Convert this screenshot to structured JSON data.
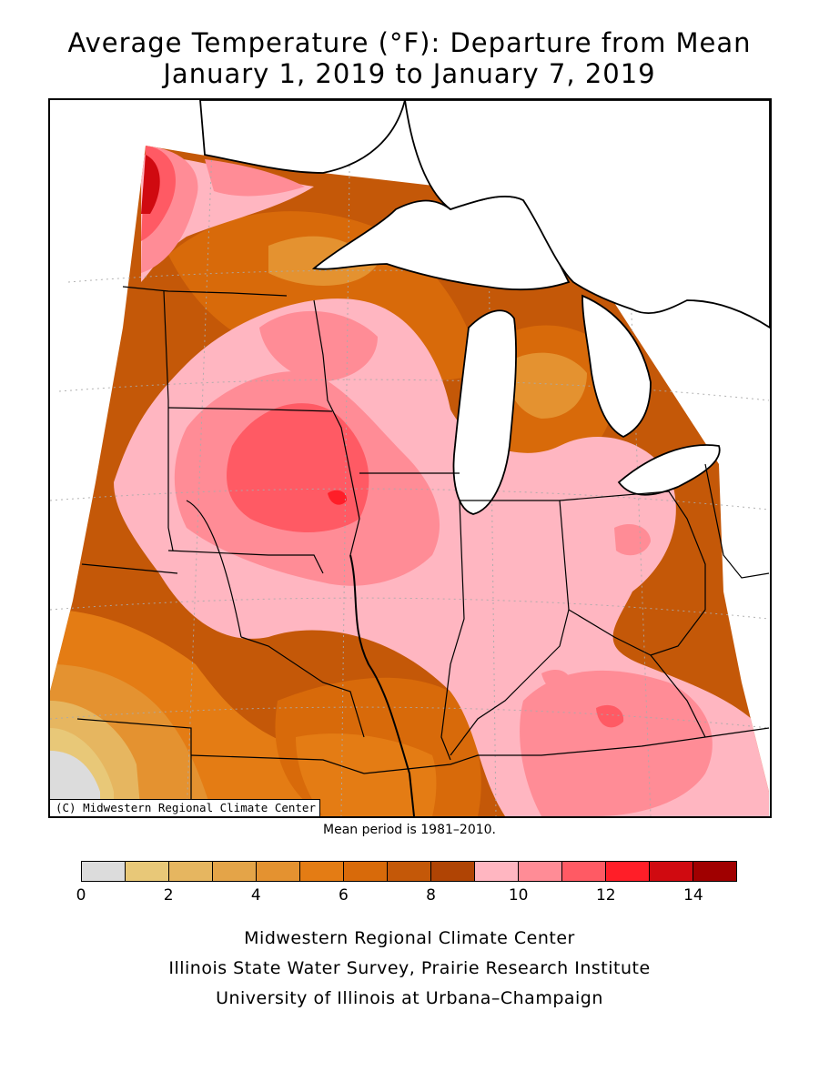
{
  "title": {
    "line1": "Average Temperature (°F): Departure from Mean",
    "line2": "January 1, 2019 to January 7, 2019"
  },
  "map": {
    "copyright": "(C) Midwestern Regional Climate Center",
    "mean_period": "Mean period is 1981–2010.",
    "water_color": "#ffffff",
    "boundary_color": "#000000"
  },
  "legend": {
    "colors": [
      "#dcdcdc",
      "#e8c878",
      "#e6b660",
      "#e4a448",
      "#e49230",
      "#e47c14",
      "#d86a0a",
      "#c45808",
      "#b04404",
      "#ffb6c1",
      "#ff8c96",
      "#ff5a64",
      "#ff1e28",
      "#d00a10",
      "#a00000"
    ],
    "ticks": [
      "0",
      "2",
      "4",
      "6",
      "8",
      "10",
      "12",
      "14"
    ],
    "min": 0,
    "max": 15
  },
  "credits": {
    "line1": "Midwestern Regional Climate Center",
    "line2": "Illinois State Water Survey, Prairie Research Institute",
    "line3": "University of Illinois at Urbana–Champaign"
  }
}
